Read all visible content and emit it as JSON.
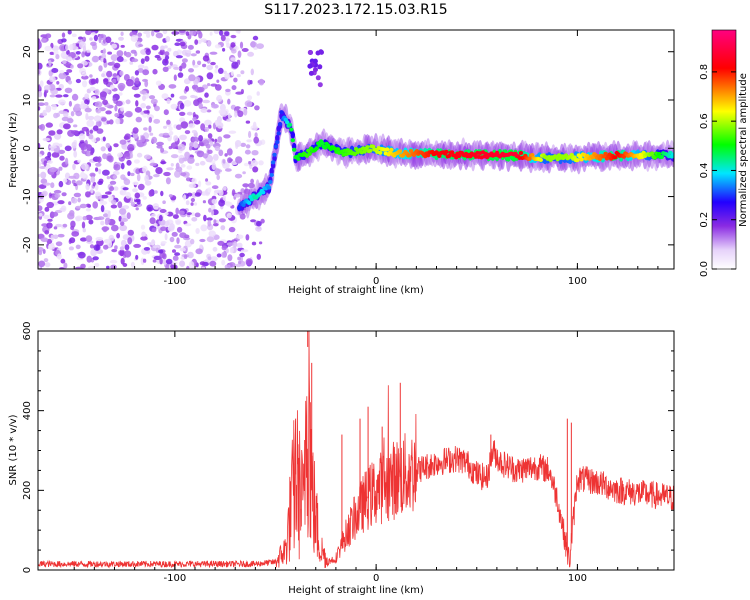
{
  "figure": {
    "title": "S117.2023.172.15.03.R15"
  },
  "chart_data": [
    {
      "type": "heatmap",
      "xlabel": "Height of straight line (km)",
      "ylabel": "Frequency (Hz)",
      "xlim": [
        -168,
        148
      ],
      "ylim": [
        -25,
        24.5
      ],
      "xticks": [
        -100,
        0,
        100
      ],
      "yticks": [
        -20,
        -10,
        0,
        10,
        20
      ],
      "grid": false,
      "colorbar": {
        "label": "Normalized spectral amplitude",
        "range": [
          0,
          0.97
        ],
        "ticks": [
          0.0,
          0.2,
          0.4,
          0.6,
          0.8
        ],
        "colormap": [
          "#ffffff",
          "#e6d2fa",
          "#8a2be2",
          "#2200ff",
          "#00e6ff",
          "#00ff00",
          "#ffff00",
          "#ff0000",
          "#ff0080"
        ]
      },
      "ridge": [
        {
          "x": -68,
          "y": -12,
          "v": 0.3
        },
        {
          "x": -60,
          "y": -10,
          "v": 0.45
        },
        {
          "x": -53,
          "y": -8,
          "v": 0.35
        },
        {
          "x": -47,
          "y": 7,
          "v": 0.3
        },
        {
          "x": -42,
          "y": 4,
          "v": 0.5
        },
        {
          "x": -40,
          "y": -2,
          "v": 0.5
        },
        {
          "x": -34,
          "y": -1,
          "v": 0.55
        },
        {
          "x": -27,
          "y": 1,
          "v": 0.5
        },
        {
          "x": -15,
          "y": -1,
          "v": 0.55
        },
        {
          "x": -3,
          "y": 0,
          "v": 0.6
        },
        {
          "x": 10,
          "y": -1,
          "v": 0.7
        },
        {
          "x": 30,
          "y": -1.2,
          "v": 0.85
        },
        {
          "x": 70,
          "y": -1.5,
          "v": 0.9
        },
        {
          "x": 84,
          "y": -2,
          "v": 0.6
        },
        {
          "x": 95,
          "y": -2,
          "v": 0.6
        },
        {
          "x": 120,
          "y": -1.5,
          "v": 0.85
        },
        {
          "x": 148,
          "y": -1.5,
          "v": 0.4
        }
      ]
    },
    {
      "type": "line",
      "xlabel": "Height of straight line (km)",
      "ylabel": "SNR (10 * v/v)",
      "xlim": [
        -168,
        148
      ],
      "ylim": [
        0,
        600
      ],
      "xticks": [
        -100,
        0,
        100
      ],
      "yticks": [
        0,
        200,
        400,
        600
      ],
      "grid": false,
      "line_color": "#ee3333",
      "series_envelope": [
        {
          "x": -168,
          "y": 15
        },
        {
          "x": -60,
          "y": 15
        },
        {
          "x": -50,
          "y": 20
        },
        {
          "x": -45,
          "y": 50
        },
        {
          "x": -40,
          "y": 240
        },
        {
          "x": -36,
          "y": 150
        },
        {
          "x": -34,
          "y": 560
        },
        {
          "x": -32,
          "y": 200
        },
        {
          "x": -28,
          "y": 60
        },
        {
          "x": -24,
          "y": 20
        },
        {
          "x": -20,
          "y": 30
        },
        {
          "x": -14,
          "y": 100
        },
        {
          "x": -6,
          "y": 170
        },
        {
          "x": 0,
          "y": 200
        },
        {
          "x": 10,
          "y": 230
        },
        {
          "x": 20,
          "y": 250
        },
        {
          "x": 30,
          "y": 270
        },
        {
          "x": 40,
          "y": 280
        },
        {
          "x": 45,
          "y": 270
        },
        {
          "x": 50,
          "y": 240
        },
        {
          "x": 55,
          "y": 230
        },
        {
          "x": 58,
          "y": 300
        },
        {
          "x": 62,
          "y": 270
        },
        {
          "x": 70,
          "y": 250
        },
        {
          "x": 80,
          "y": 260
        },
        {
          "x": 86,
          "y": 250
        },
        {
          "x": 90,
          "y": 180
        },
        {
          "x": 96,
          "y": 20
        },
        {
          "x": 100,
          "y": 230
        },
        {
          "x": 110,
          "y": 220
        },
        {
          "x": 120,
          "y": 200
        },
        {
          "x": 135,
          "y": 190
        },
        {
          "x": 148,
          "y": 180
        }
      ],
      "spikes": [
        {
          "x": -40,
          "y": 380
        },
        {
          "x": -34,
          "y": 600
        },
        {
          "x": -32,
          "y": 520
        },
        {
          "x": -17,
          "y": 340
        },
        {
          "x": -8,
          "y": 380
        },
        {
          "x": -4,
          "y": 410
        },
        {
          "x": 3,
          "y": 360
        },
        {
          "x": 12,
          "y": 470
        },
        {
          "x": 57,
          "y": 340
        },
        {
          "x": 95,
          "y": 380
        },
        {
          "x": 97,
          "y": 370
        }
      ]
    }
  ]
}
